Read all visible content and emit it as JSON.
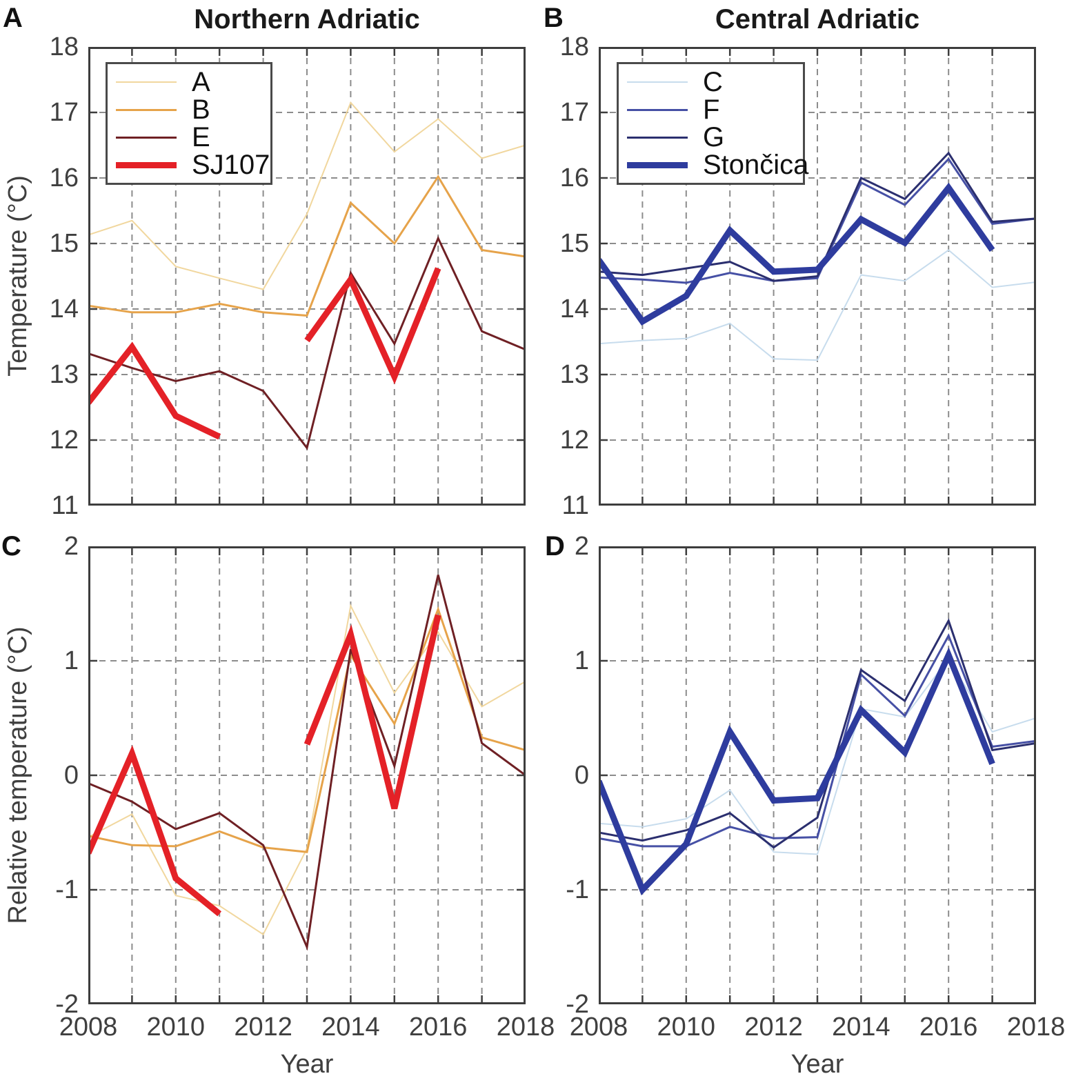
{
  "chart_data": [
    {
      "panel_label": "A",
      "type": "line",
      "title": "Northern Adriatic",
      "xlabel": "",
      "ylabel": "Temperature (°C)",
      "x": [
        2008,
        2009,
        2010,
        2011,
        2012,
        2013,
        2014,
        2015,
        2016,
        2017,
        2018
      ],
      "xlim": [
        2008,
        2018
      ],
      "ylim": [
        11,
        18
      ],
      "xticks": [
        2008,
        2010,
        2012,
        2014,
        2016,
        2018
      ],
      "yticks": [
        11,
        12,
        13,
        14,
        15,
        16,
        17,
        18
      ],
      "grid": true,
      "show_xtick_labels": false,
      "legend": {
        "show": true,
        "position": "top-left"
      },
      "series": [
        {
          "name": "A",
          "color": "#f1d79e",
          "width": 2,
          "values": [
            15.13,
            15.35,
            14.65,
            14.47,
            14.3,
            15.45,
            17.15,
            16.4,
            16.9,
            16.3,
            16.5
          ]
        },
        {
          "name": "B",
          "color": "#e6a34a",
          "width": 3,
          "values": [
            14.05,
            13.95,
            13.95,
            14.08,
            13.95,
            13.9,
            15.62,
            15.0,
            16.02,
            14.9,
            14.8
          ]
        },
        {
          "name": "E",
          "color": "#6f2024",
          "width": 3,
          "values": [
            13.32,
            13.1,
            12.9,
            13.05,
            12.75,
            11.88,
            14.55,
            13.47,
            15.08,
            13.66,
            13.38
          ]
        },
        {
          "name": "SJ107",
          "color": "#e42127",
          "width": 9,
          "values": [
            12.57,
            13.42,
            12.37,
            12.05,
            null,
            13.52,
            14.45,
            12.97,
            14.62,
            null,
            null
          ]
        }
      ]
    },
    {
      "panel_label": "B",
      "type": "line",
      "title": "Central Adriatic",
      "xlabel": "",
      "ylabel": "",
      "x": [
        2008,
        2009,
        2010,
        2011,
        2012,
        2013,
        2014,
        2015,
        2016,
        2017,
        2018
      ],
      "xlim": [
        2008,
        2018
      ],
      "ylim": [
        11,
        18
      ],
      "xticks": [
        2008,
        2010,
        2012,
        2014,
        2016,
        2018
      ],
      "yticks": [
        11,
        12,
        13,
        14,
        15,
        16,
        17,
        18
      ],
      "grid": true,
      "show_xtick_labels": false,
      "legend": {
        "show": true,
        "position": "top-left"
      },
      "series": [
        {
          "name": "C",
          "color": "#c7dced",
          "width": 2,
          "values": [
            13.47,
            13.52,
            13.55,
            13.78,
            13.24,
            13.22,
            14.52,
            14.43,
            14.9,
            14.33,
            14.41
          ]
        },
        {
          "name": "F",
          "color": "#4650a5",
          "width": 3,
          "values": [
            14.48,
            14.45,
            14.4,
            14.55,
            14.43,
            14.47,
            15.93,
            15.59,
            16.29,
            15.3,
            15.38
          ]
        },
        {
          "name": "G",
          "color": "#2b2f6f",
          "width": 3,
          "values": [
            14.57,
            14.52,
            14.62,
            14.72,
            14.43,
            14.5,
            16.0,
            15.68,
            16.38,
            15.33,
            15.38
          ]
        },
        {
          "name": "Stončica",
          "color": "#2e3c9e",
          "width": 9,
          "values": [
            14.75,
            13.81,
            14.2,
            15.2,
            14.57,
            14.6,
            15.37,
            15.01,
            15.85,
            14.9,
            null
          ]
        }
      ]
    },
    {
      "panel_label": "C",
      "type": "line",
      "title": "",
      "xlabel": "Year",
      "ylabel": "Relative temperature (°C)",
      "x": [
        2008,
        2009,
        2010,
        2011,
        2012,
        2013,
        2014,
        2015,
        2016,
        2017,
        2018
      ],
      "xlim": [
        2008,
        2018
      ],
      "ylim": [
        -2,
        2
      ],
      "xticks": [
        2008,
        2010,
        2012,
        2014,
        2016,
        2018
      ],
      "yticks": [
        -2,
        -1,
        0,
        1,
        2
      ],
      "grid": true,
      "show_xtick_labels": true,
      "legend": {
        "show": false,
        "position": null
      },
      "series": [
        {
          "name": "A",
          "color": "#f1d79e",
          "width": 2,
          "values": [
            -0.54,
            -0.34,
            -1.05,
            -1.14,
            -1.39,
            -0.64,
            1.48,
            0.72,
            1.25,
            0.6,
            0.82
          ]
        },
        {
          "name": "B",
          "color": "#e6a34a",
          "width": 3,
          "values": [
            -0.53,
            -0.61,
            -0.62,
            -0.49,
            -0.63,
            -0.67,
            1.05,
            0.45,
            1.45,
            0.33,
            0.22
          ]
        },
        {
          "name": "E",
          "color": "#6f2024",
          "width": 3,
          "values": [
            -0.07,
            -0.23,
            -0.47,
            -0.33,
            -0.61,
            -1.5,
            1.1,
            0.08,
            1.75,
            0.28,
            0.0
          ]
        },
        {
          "name": "SJ107",
          "color": "#e42127",
          "width": 9,
          "values": [
            -0.68,
            0.19,
            -0.9,
            -1.21,
            null,
            0.27,
            1.23,
            -0.29,
            1.4,
            null,
            null
          ]
        }
      ]
    },
    {
      "panel_label": "D",
      "type": "line",
      "title": "",
      "xlabel": "Year",
      "ylabel": "",
      "x": [
        2008,
        2009,
        2010,
        2011,
        2012,
        2013,
        2014,
        2015,
        2016,
        2017,
        2018
      ],
      "xlim": [
        2008,
        2018
      ],
      "ylim": [
        -2,
        2
      ],
      "xticks": [
        2008,
        2010,
        2012,
        2014,
        2016,
        2018
      ],
      "yticks": [
        -2,
        -1,
        0,
        1,
        2
      ],
      "grid": true,
      "show_xtick_labels": true,
      "legend": {
        "show": false,
        "position": null
      },
      "series": [
        {
          "name": "C",
          "color": "#c7dced",
          "width": 2,
          "values": [
            -0.42,
            -0.45,
            -0.38,
            -0.13,
            -0.67,
            -0.69,
            0.58,
            0.51,
            1.02,
            0.38,
            0.5
          ]
        },
        {
          "name": "F",
          "color": "#4650a5",
          "width": 3,
          "values": [
            -0.55,
            -0.62,
            -0.62,
            -0.45,
            -0.55,
            -0.54,
            0.88,
            0.52,
            1.22,
            0.25,
            0.3
          ]
        },
        {
          "name": "G",
          "color": "#2b2f6f",
          "width": 3,
          "values": [
            -0.5,
            -0.57,
            -0.48,
            -0.33,
            -0.63,
            -0.37,
            0.92,
            0.65,
            1.35,
            0.22,
            0.28
          ]
        },
        {
          "name": "Stončica",
          "color": "#2e3c9e",
          "width": 9,
          "values": [
            -0.05,
            -1.0,
            -0.6,
            0.38,
            -0.22,
            -0.2,
            0.57,
            0.2,
            1.05,
            0.1,
            null
          ]
        }
      ]
    }
  ]
}
